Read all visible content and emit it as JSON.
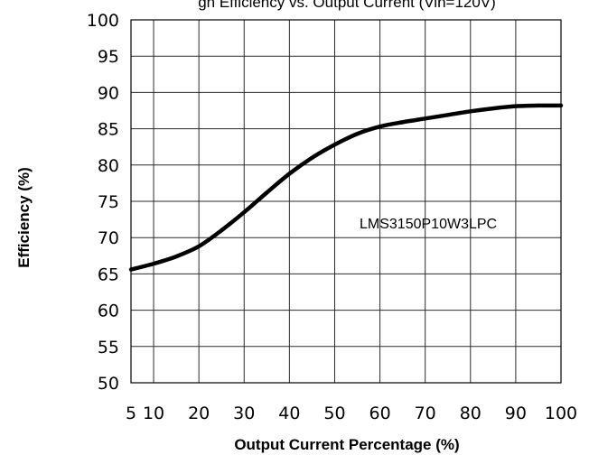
{
  "chart_data": {
    "type": "line",
    "title": "gn Efficiency vs. Output Current (Vin=120V)",
    "xlabel": "Output Current Percentage (%)",
    "ylabel": "Efficiency (%)",
    "annotation": "LMS3150P10W3LPC",
    "xlim": [
      5,
      100
    ],
    "ylim": [
      50,
      100
    ],
    "x_ticks": [
      5,
      10,
      20,
      30,
      40,
      50,
      60,
      70,
      80,
      90,
      100
    ],
    "y_ticks": [
      50,
      55,
      60,
      65,
      70,
      75,
      80,
      85,
      90,
      95,
      100
    ],
    "grid": true,
    "series": [
      {
        "x": [
          5,
          10,
          15,
          20,
          25,
          30,
          35,
          40,
          45,
          50,
          55,
          60,
          65,
          70,
          75,
          80,
          85,
          90,
          95,
          100
        ],
        "y": [
          65.6,
          66.4,
          67.4,
          68.8,
          71.0,
          73.5,
          76.2,
          78.8,
          81.0,
          82.8,
          84.3,
          85.3,
          85.9,
          86.4,
          86.9,
          87.4,
          87.8,
          88.1,
          88.2,
          88.2
        ]
      }
    ]
  }
}
